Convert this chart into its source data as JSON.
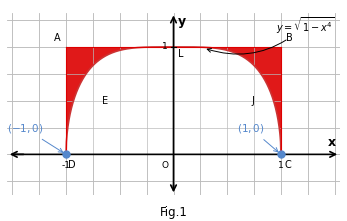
{
  "xlim": [
    -1.55,
    1.55
  ],
  "ylim": [
    -0.38,
    1.32
  ],
  "fig_caption": "Fig.1",
  "curve_color": "#cc3333",
  "fill_color": "#dd0000",
  "fill_alpha": 0.9,
  "point_color": "#5588cc",
  "point_size": 5,
  "label_color_black": "#000000",
  "label_color_blue": "#5588cc",
  "grid_color": "#bbbbbb",
  "grid_step": 0.25,
  "background": "#ffffff",
  "points": {
    "A": [
      -1,
      1
    ],
    "B": [
      1,
      1
    ],
    "L": [
      0,
      1
    ],
    "D": [
      -1,
      0
    ],
    "C": [
      1,
      0
    ],
    "E": [
      -0.7,
      0.5
    ],
    "J": [
      0.7,
      0.5
    ],
    "O": [
      0,
      0
    ]
  },
  "figsize": [
    3.47,
    2.21
  ],
  "dpi": 100
}
